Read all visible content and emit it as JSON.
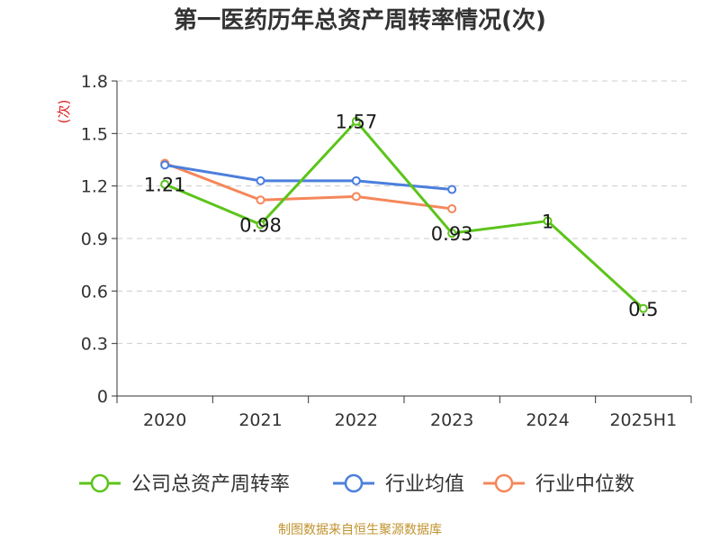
{
  "chart_data": {
    "type": "line",
    "title": "第一医药历年总资产周转率情况(次)",
    "ylabel": "(次)",
    "categories": [
      "2020",
      "2021",
      "2022",
      "2023",
      "2024",
      "2025H1"
    ],
    "ylim": [
      0,
      1.8
    ],
    "yticks": [
      "0",
      "0.3",
      "0.6",
      "0.9",
      "1.2",
      "1.5",
      "1.8"
    ],
    "grid": true,
    "legend_position": "bottom",
    "series": [
      {
        "name": "公司总资产周转率",
        "color": "#5cc41a",
        "values": [
          1.21,
          0.98,
          1.57,
          0.93,
          1,
          0.5
        ],
        "labels": [
          "1.21",
          "0.98",
          "1.57",
          "0.93",
          "1",
          "0.5"
        ]
      },
      {
        "name": "行业均值",
        "color": "#4b7fdc",
        "values": [
          1.32,
          1.23,
          1.23,
          1.18,
          null,
          null
        ]
      },
      {
        "name": "行业中位数",
        "color": "#f5875a",
        "values": [
          1.33,
          1.12,
          1.14,
          1.07,
          null,
          null
        ]
      }
    ]
  },
  "source": "制图数据来自恒生聚源数据库",
  "colors": {
    "axis": "#333333",
    "grid": "#cccccc",
    "unit": "#e02020"
  }
}
